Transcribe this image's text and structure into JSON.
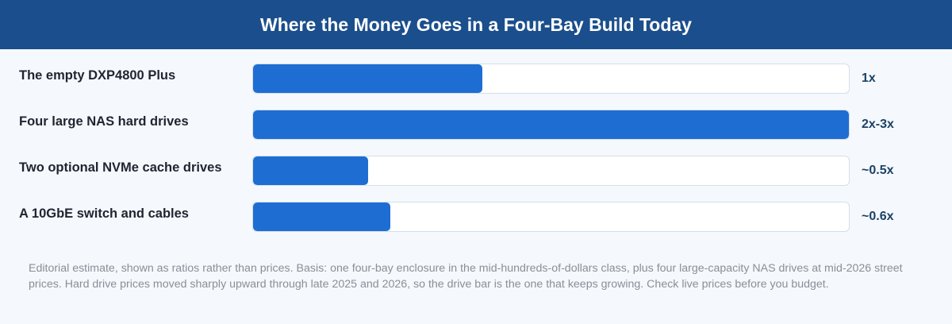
{
  "header": {
    "title": "Where the Money Goes in a Four-Bay Build Today"
  },
  "chart_data": {
    "type": "bar",
    "orientation": "horizontal",
    "title": "Where the Money Goes in a Four-Bay Build Today",
    "categories": [
      "The empty DXP4800 Plus",
      "Four large NAS hard drives",
      "Two optional NVMe cache drives",
      "A 10GbE switch and cables"
    ],
    "values": [
      0.385,
      1.0,
      0.193,
      0.231
    ],
    "value_labels": [
      "1x",
      "2x-3x",
      "~0.5x",
      "~0.6x"
    ],
    "xlim": [
      0,
      1
    ],
    "grid": false,
    "legend": "none",
    "colors": {
      "bar": "#1e6dd2",
      "track": "#ffffff",
      "track_border": "#d3dfec",
      "header": "#1b4e8c",
      "value_text": "#1b4266"
    }
  },
  "footnote": "Editorial estimate, shown as ratios rather than prices. Basis: one four-bay enclosure in the mid-hundreds-of-dollars class, plus four large-capacity NAS drives at mid-2026 street prices. Hard drive prices moved sharply upward through late 2025 and 2026, so the drive bar is the one that keeps growing. Check live prices before you budget."
}
